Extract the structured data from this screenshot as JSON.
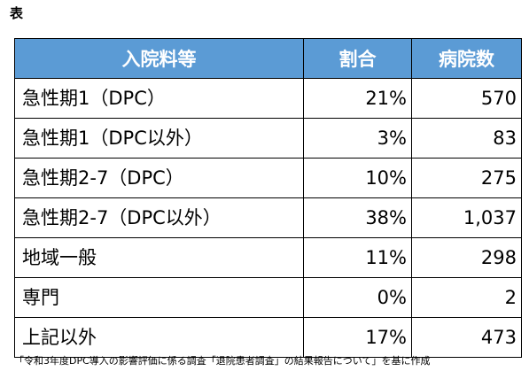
{
  "title": "表",
  "table": {
    "headers": [
      "入院料等",
      "割合",
      "病院数"
    ],
    "rows": [
      {
        "category": "急性期1（DPC）",
        "ratio": "21%",
        "hospitals": "570"
      },
      {
        "category": "急性期1（DPC以外）",
        "ratio": "3%",
        "hospitals": "83"
      },
      {
        "category": "急性期2-7（DPC）",
        "ratio": "10%",
        "hospitals": "275"
      },
      {
        "category": "急性期2-7（DPC以外）",
        "ratio": "38%",
        "hospitals": "1,037"
      },
      {
        "category": "地域一般",
        "ratio": "11%",
        "hospitals": "298"
      },
      {
        "category": "専門",
        "ratio": "0%",
        "hospitals": "2"
      },
      {
        "category": "上記以外",
        "ratio": "17%",
        "hospitals": "473"
      }
    ]
  },
  "footnote": "「令和3年度DPC導入の影響評価に係る調査「退院患者調査」の結果報告について」を基に作成",
  "colors": {
    "header_background": "#5b9bd5",
    "header_text": "#ffffff",
    "border": "#000000"
  }
}
